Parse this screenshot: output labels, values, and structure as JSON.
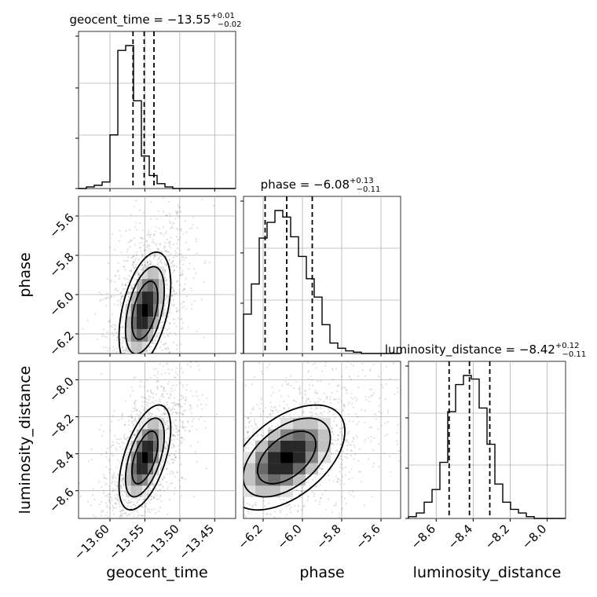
{
  "chart_data": {
    "type": "corner",
    "parameters": [
      {
        "name": "geocent_time",
        "median": -13.55,
        "plus": 0.01,
        "minus": 0.02,
        "title_prefix": "geocent_time = ",
        "title_value": "−13.55",
        "title_sup": "+0.01",
        "title_sub": "−0.02",
        "range": [
          -13.645,
          -13.42
        ],
        "ticks": [
          -13.6,
          -13.55,
          -13.5,
          -13.45
        ],
        "tick_labels": [
          "−13.60",
          "−13.55",
          "−13.50",
          "−13.45"
        ],
        "quantiles": [
          -13.567,
          -13.551,
          -13.537
        ],
        "hist": [
          0,
          1,
          2,
          4,
          33,
          85,
          88,
          54,
          20,
          8,
          3,
          1,
          0,
          0,
          0,
          0,
          0,
          0,
          0,
          0
        ]
      },
      {
        "name": "phase",
        "median": -6.08,
        "plus": 0.13,
        "minus": 0.11,
        "title_prefix": "phase = ",
        "title_value": "−6.08",
        "title_sup": "+0.13",
        "title_sub": "−0.11",
        "range": [
          -6.3,
          -5.5
        ],
        "ticks": [
          -6.2,
          -6.0,
          -5.8,
          -5.6
        ],
        "tick_labels": [
          "−6.2",
          "−6.0",
          "−5.8",
          "−5.6"
        ],
        "quantiles": [
          -6.19,
          -6.08,
          -5.95
        ],
        "hist": [
          30,
          53,
          88,
          100,
          109,
          104,
          89,
          74,
          57,
          43,
          22,
          8,
          4,
          2,
          1,
          0,
          0,
          0,
          0,
          0
        ]
      },
      {
        "name": "luminosity_distance",
        "median": -8.42,
        "plus": 0.12,
        "minus": 0.11,
        "title_prefix": "luminosity_distance = ",
        "title_value": "−8.42",
        "title_sup": "+0.12",
        "title_sub": "−0.11",
        "range": [
          -8.75,
          -7.9
        ],
        "ticks": [
          -8.6,
          -8.4,
          -8.2,
          -8.0
        ],
        "tick_labels": [
          "−8.6",
          "−8.4",
          "−8.2",
          "−8.0"
        ],
        "quantiles": [
          -8.53,
          -8.42,
          -8.31
        ],
        "hist": [
          1,
          3,
          9,
          16,
          31,
          59,
          74,
          79,
          77,
          61,
          41,
          19,
          9,
          5,
          3,
          1,
          0,
          0,
          0,
          0
        ]
      }
    ],
    "ylabels": [
      "phase",
      "luminosity_distance"
    ],
    "xlabels": [
      "geocent_time",
      "phase",
      "luminosity_distance"
    ],
    "contour_levels": [
      "1-sigma",
      "1.5-sigma",
      "2-sigma"
    ],
    "grid": true,
    "colors": {
      "line": "#000000",
      "grid": "#b0b0b0",
      "scatter": "#000000",
      "density_dark": "#000000",
      "density_light": "#e8e8e8"
    }
  }
}
